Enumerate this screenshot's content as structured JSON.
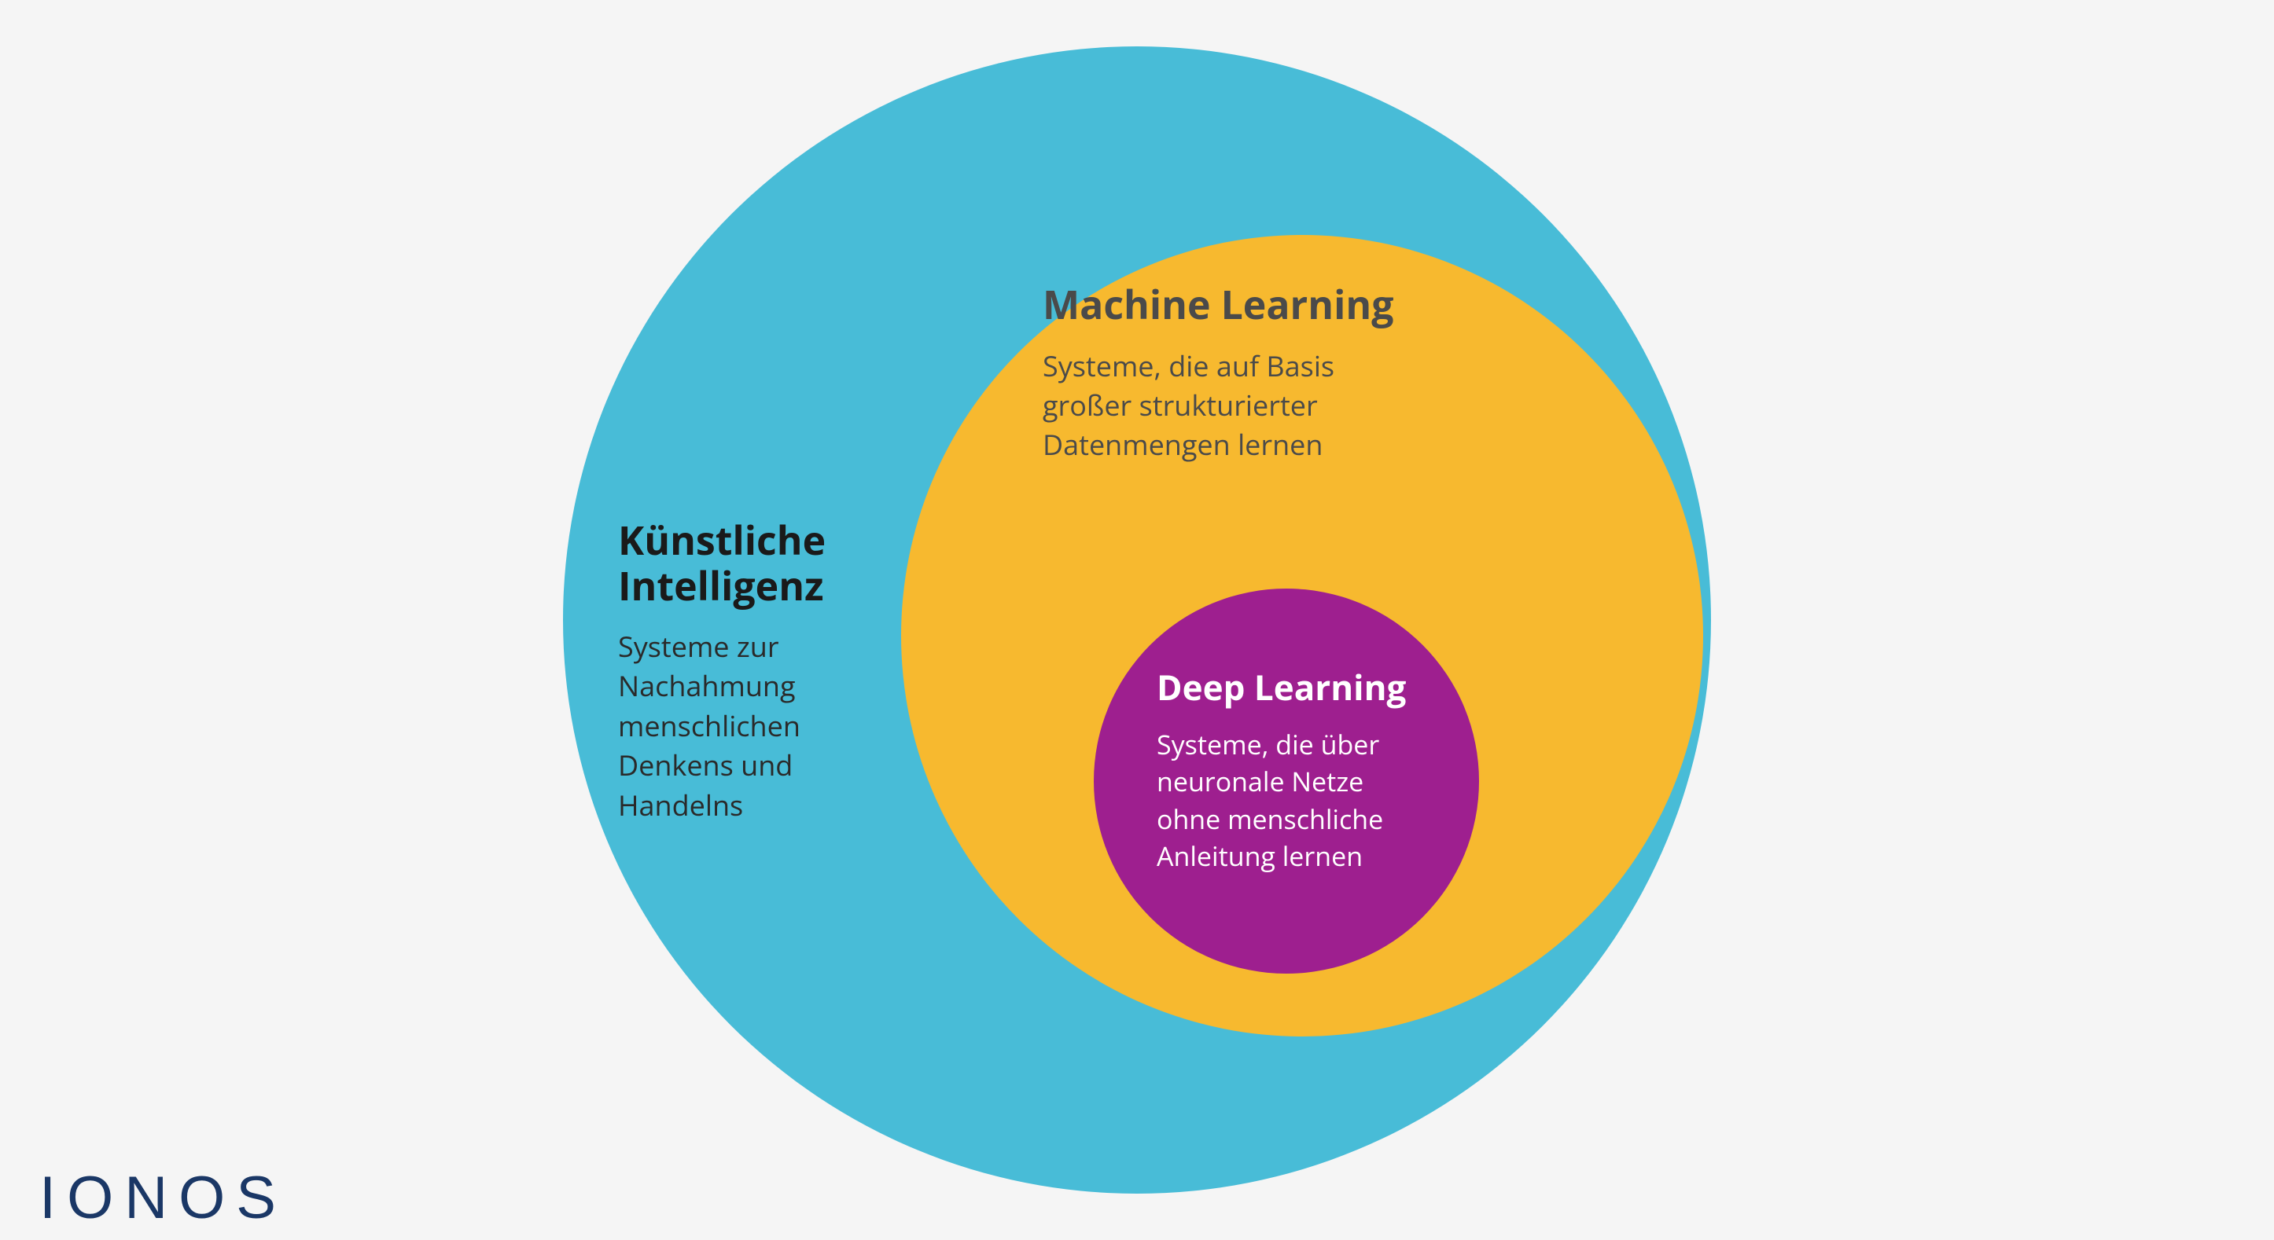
{
  "diagram": {
    "type": "nested-circles",
    "background_color": "#f5f5f5",
    "circles": {
      "outer": {
        "title": "Künstliche Intelligenz",
        "description": "Systeme zur Nachahmung menschlichen Denkens und Handelns",
        "fill_color": "#48bcd7",
        "title_color": "#1a1a1a",
        "desc_color": "#2a2a2a",
        "title_fontsize": 50,
        "desc_fontsize": 36,
        "diameter": 1460
      },
      "middle": {
        "title": "Machine Learning",
        "description": "Systeme, die auf Basis großer strukturierter Datenmengen lernen",
        "fill_color": "#f7b92f",
        "title_color": "#4a4a4a",
        "desc_color": "#4a4a4a",
        "title_fontsize": 50,
        "desc_fontsize": 36,
        "diameter": 1020
      },
      "inner": {
        "title": "Deep Learning",
        "description": "Systeme, die über neuronale Netze ohne menschliche Anleitung lernen",
        "fill_color": "#9e1f8f",
        "title_color": "#ffffff",
        "desc_color": "#ffffff",
        "title_fontsize": 44,
        "desc_fontsize": 34,
        "diameter": 490
      }
    }
  },
  "logo": {
    "text": "IONOS",
    "color": "#1a3766",
    "fontsize": 76
  }
}
